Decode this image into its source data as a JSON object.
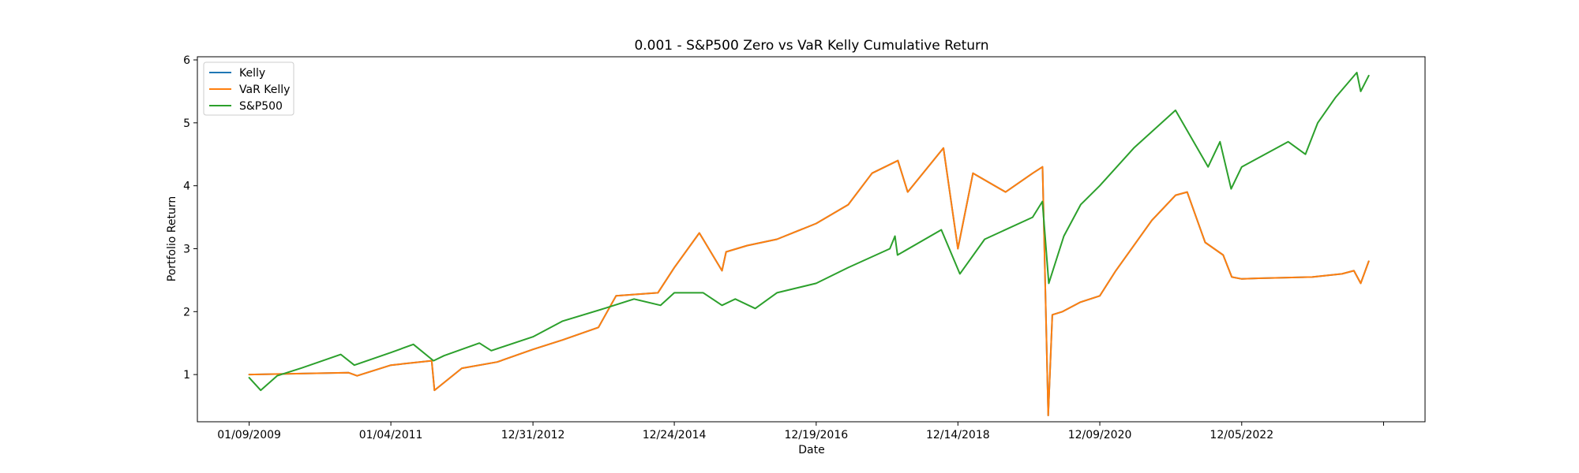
{
  "chart_data": {
    "type": "line",
    "title": "0.001 - S&P500 Zero vs VaR Kelly Cumulative Return",
    "xlabel": "Date",
    "ylabel": "Portfolio Return",
    "x_ticks": [
      "01/09/2009",
      "01/04/2011",
      "12/31/2012",
      "12/24/2014",
      "12/19/2016",
      "12/14/2018",
      "12/09/2020",
      "12/05/2022"
    ],
    "xlim": [
      "2008-04-19",
      "2025-06-30"
    ],
    "ylim": [
      0.25,
      6.05
    ],
    "y_ticks": [
      1,
      2,
      3,
      4,
      5,
      6
    ],
    "grid": false,
    "legend_position": "upper-left",
    "legend": [
      "Kelly",
      "VaR Kelly",
      "S&P500"
    ],
    "colors": {
      "Kelly": "#1f77b4",
      "VaR Kelly": "#ff7f0e",
      "S&P500": "#2ca02c"
    },
    "series": [
      {
        "name": "Kelly",
        "x": [
          "2009-01-09",
          "2010-06-01",
          "2010-07-15",
          "2011-01-04",
          "2011-08-01",
          "2011-08-15",
          "2012-01-02",
          "2012-07-01",
          "2012-12-31",
          "2013-06-01",
          "2013-12-01",
          "2014-03-01",
          "2014-10-01",
          "2014-12-24",
          "2015-05-01",
          "2015-08-25",
          "2015-09-15",
          "2016-01-01",
          "2016-06-01",
          "2016-12-19",
          "2017-06-01",
          "2017-10-01",
          "2018-02-10",
          "2018-04-01",
          "2018-10-01",
          "2018-12-14",
          "2019-03-01",
          "2019-08-15",
          "2020-01-01",
          "2020-02-20",
          "2020-03-20",
          "2020-04-10",
          "2020-06-01",
          "2020-09-01",
          "2020-12-09",
          "2021-03-01",
          "2021-09-01",
          "2022-01-01",
          "2022-03-01",
          "2022-06-01",
          "2022-09-01",
          "2022-10-15",
          "2022-12-05",
          "2023-03-01",
          "2023-12-01",
          "2024-05-01",
          "2024-07-01",
          "2024-08-05",
          "2024-09-15"
        ],
        "values": [
          1.0,
          1.03,
          0.98,
          1.15,
          1.22,
          0.75,
          1.1,
          1.2,
          1.4,
          1.55,
          1.75,
          2.25,
          2.3,
          2.7,
          3.25,
          2.65,
          2.95,
          3.05,
          3.15,
          3.4,
          3.7,
          4.2,
          4.4,
          3.9,
          4.6,
          3.0,
          4.2,
          3.9,
          4.2,
          4.3,
          0.35,
          1.95,
          2.0,
          2.15,
          2.25,
          2.65,
          3.45,
          3.85,
          3.9,
          3.1,
          2.9,
          2.55,
          2.52,
          2.53,
          2.55,
          2.6,
          2.65,
          2.45,
          2.8
        ]
      },
      {
        "name": "VaR Kelly",
        "x": [
          "2009-01-09",
          "2010-06-01",
          "2010-07-15",
          "2011-01-04",
          "2011-08-01",
          "2011-08-15",
          "2012-01-02",
          "2012-07-01",
          "2012-12-31",
          "2013-06-01",
          "2013-12-01",
          "2014-03-01",
          "2014-10-01",
          "2014-12-24",
          "2015-05-01",
          "2015-08-25",
          "2015-09-15",
          "2016-01-01",
          "2016-06-01",
          "2016-12-19",
          "2017-06-01",
          "2017-10-01",
          "2018-02-10",
          "2018-04-01",
          "2018-10-01",
          "2018-12-14",
          "2019-03-01",
          "2019-08-15",
          "2020-01-01",
          "2020-02-20",
          "2020-03-20",
          "2020-04-10",
          "2020-06-01",
          "2020-09-01",
          "2020-12-09",
          "2021-03-01",
          "2021-09-01",
          "2022-01-01",
          "2022-03-01",
          "2022-06-01",
          "2022-09-01",
          "2022-10-15",
          "2022-12-05",
          "2023-03-01",
          "2023-12-01",
          "2024-05-01",
          "2024-07-01",
          "2024-08-05",
          "2024-09-15"
        ],
        "values": [
          1.0,
          1.03,
          0.98,
          1.15,
          1.22,
          0.75,
          1.1,
          1.2,
          1.4,
          1.55,
          1.75,
          2.25,
          2.3,
          2.7,
          3.25,
          2.65,
          2.95,
          3.05,
          3.15,
          3.4,
          3.7,
          4.2,
          4.4,
          3.9,
          4.6,
          3.0,
          4.2,
          3.9,
          4.2,
          4.3,
          0.35,
          1.95,
          2.0,
          2.15,
          2.25,
          2.65,
          3.45,
          3.85,
          3.9,
          3.1,
          2.9,
          2.55,
          2.52,
          2.53,
          2.55,
          2.6,
          2.65,
          2.45,
          2.8
        ]
      },
      {
        "name": "S&P500",
        "x": [
          "2009-01-09",
          "2009-03-09",
          "2009-06-01",
          "2009-10-01",
          "2010-01-01",
          "2010-04-23",
          "2010-07-01",
          "2011-01-04",
          "2011-04-29",
          "2011-08-10",
          "2011-10-03",
          "2012-04-01",
          "2012-06-01",
          "2012-12-31",
          "2013-06-01",
          "2013-12-31",
          "2014-06-01",
          "2014-10-15",
          "2014-12-24",
          "2015-05-21",
          "2015-08-25",
          "2015-11-01",
          "2016-02-11",
          "2016-06-01",
          "2016-12-19",
          "2017-06-01",
          "2017-12-31",
          "2018-01-26",
          "2018-02-08",
          "2018-09-20",
          "2018-12-24",
          "2019-04-30",
          "2019-12-31",
          "2020-02-19",
          "2020-03-23",
          "2020-06-08",
          "2020-09-02",
          "2020-12-09",
          "2021-06-01",
          "2021-12-31",
          "2022-06-16",
          "2022-08-16",
          "2022-10-12",
          "2022-12-05",
          "2023-07-31",
          "2023-10-27",
          "2023-12-29",
          "2024-03-28",
          "2024-07-16",
          "2024-08-05",
          "2024-09-15"
        ],
        "values": [
          0.95,
          0.75,
          0.98,
          1.1,
          1.2,
          1.32,
          1.15,
          1.35,
          1.48,
          1.22,
          1.3,
          1.5,
          1.38,
          1.6,
          1.85,
          2.05,
          2.2,
          2.1,
          2.3,
          2.3,
          2.1,
          2.2,
          2.05,
          2.3,
          2.45,
          2.7,
          3.0,
          3.2,
          2.9,
          3.3,
          2.6,
          3.15,
          3.5,
          3.75,
          2.45,
          3.2,
          3.7,
          4.0,
          4.6,
          5.2,
          4.3,
          4.7,
          3.95,
          4.3,
          4.7,
          4.5,
          5.0,
          5.4,
          5.8,
          5.5,
          5.75
        ]
      }
    ]
  }
}
